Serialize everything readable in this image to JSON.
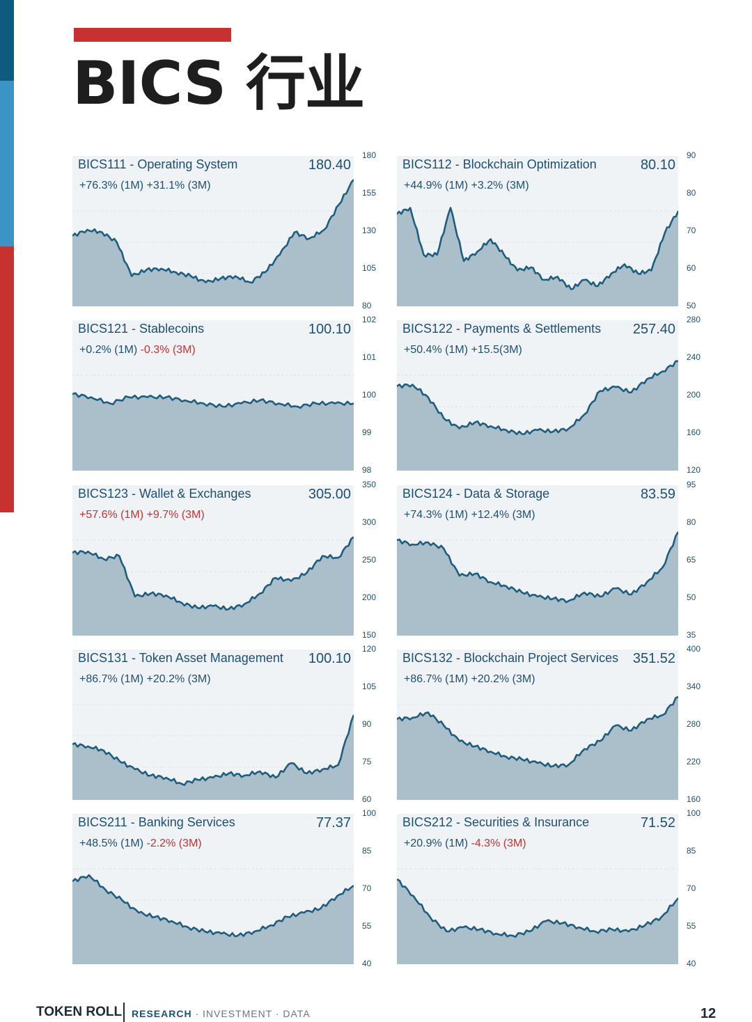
{
  "header": {
    "title": "BICS 行业"
  },
  "colors": {
    "accent_red": "#c73231",
    "navy": "#1e4f73",
    "fill": "#aabfc9",
    "line": "#1f5d80",
    "bg": "#eff3f6"
  },
  "footer": {
    "brand": "TOKEN ROLL",
    "tag_research": "RESEARCH",
    "tag_rest": " · INVESTMENT · DATA",
    "page_number": "12"
  },
  "chart_data": [
    {
      "type": "area",
      "title": "BICS111 - Operating System",
      "last": "180.40",
      "change_1m": "+76.3% (1M)",
      "change_3m": "+31.1% (3M)",
      "c1": "up",
      "c3": "up",
      "ticks": [
        "180",
        "155",
        "130",
        "105",
        "80"
      ],
      "ylim": [
        80,
        180
      ],
      "values": [
        135,
        140,
        138,
        130,
        103,
        108,
        109,
        106,
        103,
        98,
        101,
        103,
        98,
        106,
        120,
        138,
        133,
        140,
        160,
        180
      ]
    },
    {
      "type": "area",
      "title": "BICS112 - Blockchain Optimization",
      "last": "80.10",
      "change_1m": "+44.9% (1M)",
      "change_3m": "+3.2% (3M)",
      "c1": "up",
      "c3": "up",
      "ticks": [
        "90",
        "80",
        "70",
        "60",
        "50"
      ],
      "ylim": [
        50,
        90
      ],
      "values": [
        79,
        81,
        66,
        66,
        81,
        64,
        67,
        71,
        66,
        61,
        62,
        58,
        59,
        55,
        58,
        56,
        60,
        63,
        60,
        61,
        73,
        80
      ]
    },
    {
      "type": "area",
      "title": "BICS121 - Stablecoins",
      "last": "100.10",
      "change_1m": "+0.2% (1M)",
      "change_3m": "-0.3% (3M)",
      "c1": "up",
      "c3": "down",
      "ticks": [
        "102",
        "101",
        "100",
        "99",
        "98"
      ],
      "ylim": [
        98,
        102
      ],
      "values": [
        100.4,
        100.3,
        100.1,
        100.3,
        100.3,
        100.3,
        100.2,
        100.1,
        100.0,
        100.1,
        100.2,
        100.1,
        100.0,
        100.1,
        100.1,
        100.1
      ]
    },
    {
      "type": "area",
      "title": "BICS122 - Payments & Settlements",
      "last": "257.40",
      "change_1m": "+50.4% (1M)",
      "change_3m": "+15.5(3M)",
      "c1": "up",
      "c3": "up",
      "ticks": [
        "280",
        "240",
        "200",
        "160",
        "120"
      ],
      "ylim": [
        120,
        280
      ],
      "values": [
        226,
        228,
        212,
        185,
        172,
        180,
        175,
        170,
        165,
        170,
        168,
        172,
        190,
        220,
        225,
        218,
        235,
        245,
        258
      ]
    },
    {
      "type": "area",
      "title": "BICS123 - Wallet & Exchanges",
      "last": "305.00",
      "change_1m": "+57.6% (1M)",
      "change_3m": "+9.7% (3M)",
      "c1": "down",
      "c3": "down",
      "ticks": [
        "350",
        "300",
        "250",
        "200",
        "150"
      ],
      "ylim": [
        150,
        350
      ],
      "values": [
        280,
        282,
        270,
        275,
        210,
        215,
        212,
        200,
        192,
        195,
        190,
        198,
        215,
        240,
        235,
        248,
        275,
        272,
        305
      ]
    },
    {
      "type": "area",
      "title": "BICS124 - Data & Storage",
      "last": "83.59",
      "change_1m": "+74.3% (1M)",
      "change_3m": "+12.4% (3M)",
      "c1": "up",
      "c3": "up",
      "ticks": [
        "95",
        "80",
        "65",
        "50",
        "35"
      ],
      "ylim": [
        35,
        95
      ],
      "values": [
        80,
        78,
        79,
        76,
        63,
        64,
        60,
        58,
        55,
        53,
        52,
        51,
        55,
        53,
        57,
        54,
        60,
        67,
        84
      ]
    },
    {
      "type": "area",
      "title": "BICS131 - Token Asset Management",
      "last": "100.10",
      "change_1m": "+86.7% (1M)",
      "change_3m": "+20.2% (3M)",
      "c1": "up",
      "c3": "up",
      "ticks": [
        "120",
        "105",
        "90",
        "75",
        "60"
      ],
      "ylim": [
        60,
        120
      ],
      "values": [
        86,
        85,
        83,
        78,
        74,
        71,
        70,
        67,
        69,
        70,
        72,
        71,
        73,
        70,
        77,
        72,
        74,
        76,
        100
      ]
    },
    {
      "type": "area",
      "title": "BICS132 - Blockchain Project Services",
      "last": "351.52",
      "change_1m": "+86.7% (1M)",
      "change_3m": "+20.2% (3M)",
      "c1": "up",
      "c3": "up",
      "ticks": [
        "400",
        "340",
        "280",
        "220",
        "160"
      ],
      "ylim": [
        160,
        400
      ],
      "values": [
        312,
        315,
        325,
        300,
        270,
        260,
        250,
        240,
        235,
        228,
        222,
        225,
        255,
        270,
        300,
        290,
        312,
        320,
        355
      ]
    },
    {
      "type": "area",
      "title": "BICS211 - Banking Services",
      "last": "77.37",
      "change_1m": "+48.5% (1M)",
      "change_3m": "-2.2% (3M)",
      "c1": "up",
      "c3": "down",
      "ticks": [
        "100",
        "85",
        "70",
        "55",
        "40"
      ],
      "ylim": [
        40,
        100
      ],
      "values": [
        79,
        82,
        75,
        70,
        64,
        62,
        60,
        57,
        55,
        54,
        53,
        55,
        58,
        62,
        64,
        66,
        72,
        77
      ]
    },
    {
      "type": "area",
      "title": "BICS212 - Securities & Insurance",
      "last": "71.52",
      "change_1m": "+20.9% (1M)",
      "change_3m": "-4.3% (3M)",
      "c1": "up",
      "c3": "down",
      "ticks": [
        "100",
        "85",
        "70",
        "55",
        "40"
      ],
      "ylim": [
        40,
        100
      ],
      "values": [
        80,
        72,
        62,
        55,
        57,
        56,
        54,
        53,
        55,
        60,
        59,
        57,
        55,
        56,
        55,
        58,
        62,
        71
      ]
    }
  ]
}
